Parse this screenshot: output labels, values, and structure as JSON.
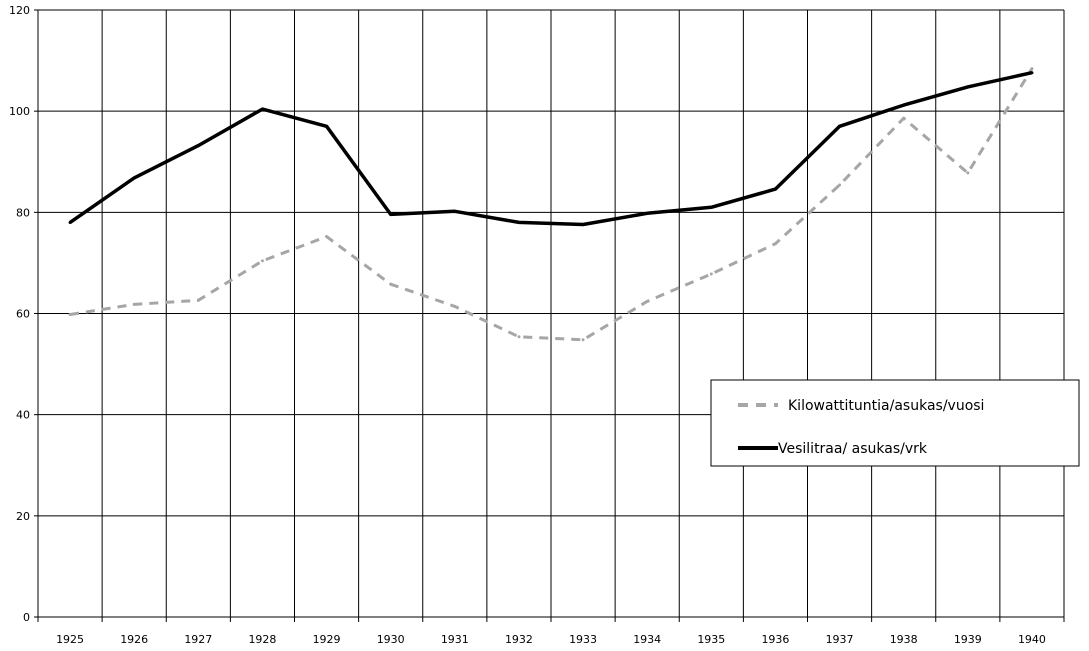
{
  "chart_data": {
    "type": "line",
    "title": "",
    "xlabel": "",
    "ylabel": "",
    "categories": [
      "1925",
      "1926",
      "1927",
      "1928",
      "1929",
      "1930",
      "1931",
      "1932",
      "1933",
      "1934",
      "1935",
      "1936",
      "1937",
      "1938",
      "1939",
      "1940"
    ],
    "ylim": [
      0,
      120
    ],
    "yticks": [
      "0",
      "20",
      "40",
      "60",
      "80",
      "100",
      "120"
    ],
    "grid": true,
    "legend_position": "right",
    "series": [
      {
        "name": "Kilowattituntia/asukas/vuosi",
        "values": [
          59.8,
          61.8,
          62.6,
          70.4,
          75.2,
          65.8,
          61.4,
          55.4,
          54.8,
          62.4,
          67.8,
          73.8,
          85.4,
          98.6,
          87.8,
          108.4
        ],
        "color": "#a6a6a6",
        "style": "dashed"
      },
      {
        "name": "Vesilitraa/ asukas/vrk",
        "values": [
          78.0,
          86.8,
          93.2,
          100.4,
          97.0,
          79.6,
          80.2,
          78.0,
          77.6,
          79.8,
          81.0,
          84.6,
          97.0,
          101.2,
          104.8,
          107.6
        ],
        "color": "#000000",
        "style": "solid"
      }
    ]
  }
}
